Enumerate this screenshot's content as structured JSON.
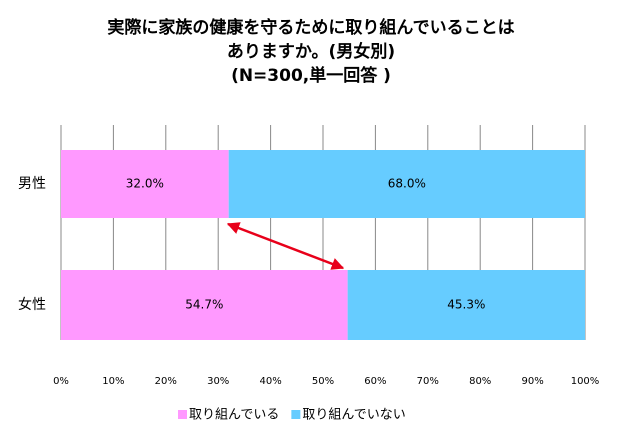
{
  "chart_data": {
    "type": "stacked_barh",
    "title": [
      "実際に家族の健康を守るために取り組んでいることは",
      "ありますか。(男女別)",
      "(N=300,単一回答 )"
    ],
    "categories": [
      "男性",
      "女性"
    ],
    "series": [
      {
        "name": "取り組んでいる",
        "color": "#ff99ff",
        "values": [
          32.0,
          54.7
        ],
        "value_labels": [
          "32.0%",
          "54.7%"
        ]
      },
      {
        "name": "取り組んでいない",
        "color": "#66ccff",
        "values": [
          68.0,
          45.3
        ],
        "value_labels": [
          "68.0%",
          "45.3%"
        ]
      }
    ],
    "xlim": [
      0,
      100
    ],
    "xticks": [
      {
        "value": 0,
        "label": "0%"
      },
      {
        "value": 10,
        "label": "10%"
      },
      {
        "value": 20,
        "label": "20%"
      },
      {
        "value": 30,
        "label": "30%"
      },
      {
        "value": 40,
        "label": "40%"
      },
      {
        "value": 50,
        "label": "50%"
      },
      {
        "value": 60,
        "label": "60%"
      },
      {
        "value": 70,
        "label": "70%"
      },
      {
        "value": 80,
        "label": "80%"
      },
      {
        "value": 90,
        "label": "90%"
      },
      {
        "value": 100,
        "label": "100%"
      }
    ],
    "grid": true,
    "legend": "bottom"
  }
}
